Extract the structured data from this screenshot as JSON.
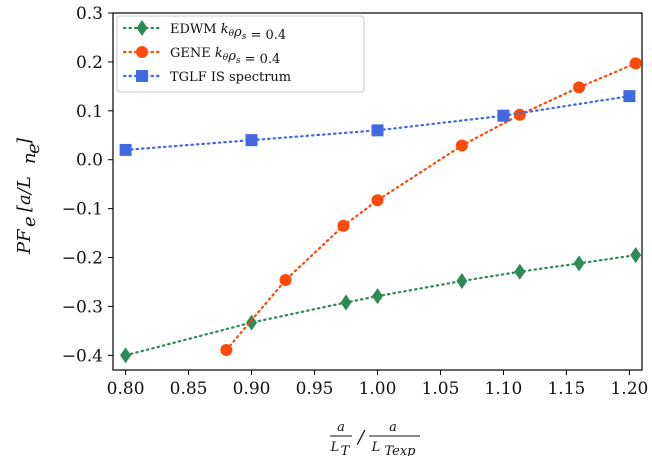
{
  "chart_data": {
    "type": "line",
    "x_axis": {
      "xlim": [
        0.79,
        1.21
      ],
      "ticks": [
        0.8,
        0.85,
        0.9,
        0.95,
        1.0,
        1.05,
        1.1,
        1.15,
        1.2
      ],
      "tick_labels": [
        "0.80",
        "0.85",
        "0.90",
        "0.95",
        "1.00",
        "1.05",
        "1.10",
        "1.15",
        "1.20"
      ]
    },
    "y_axis": {
      "ylim": [
        -0.43,
        0.3
      ],
      "ticks": [
        -0.4,
        -0.3,
        -0.2,
        -0.1,
        0.0,
        0.1,
        0.2,
        0.3
      ],
      "tick_labels": [
        "−0.4",
        "−0.3",
        "−0.2",
        "−0.1",
        "0.0",
        "0.1",
        "0.2",
        "0.3"
      ]
    },
    "xlabel": {
      "frac1_num": "a",
      "frac1_den": "L",
      "frac1_den_sub": "T",
      "slash": "/",
      "frac2_num": "a",
      "frac2_den": "L",
      "frac2_den_sub": "Texp"
    },
    "ylabel": {
      "text": "PF",
      "sub": "e",
      "units_prefix": "[a/L",
      "units_sub": "n",
      "units_subsub": "e",
      "units_suffix": "]"
    },
    "legend": {
      "placement": "upper-left",
      "entries": [
        "EDWM $k_\\theta\\rho_s$ = 0.4",
        "GENE $k_\\theta\\rho_s$ = 0.4",
        "TGLF IS spectrum"
      ],
      "rendered": [
        {
          "prefix": "EDWM ",
          "sym": "k",
          "sub1": "θ",
          "sym2": "ρ",
          "sub2": "s",
          "suffix": " = 0.4"
        },
        {
          "prefix": "GENE ",
          "sym": "k",
          "sub1": "θ",
          "sym2": "ρ",
          "sub2": "s",
          "suffix": " = 0.4"
        },
        {
          "prefix": "TGLF IS spectrum",
          "sym": "",
          "sub1": "",
          "sym2": "",
          "sub2": "",
          "suffix": ""
        }
      ]
    },
    "grid": false,
    "series": [
      {
        "name": "EDWM $k_\\theta\\rho_s$ = 0.4",
        "color": "#2e8b57",
        "marker": "diamond",
        "linestyle": "dotted",
        "x": [
          0.8,
          0.9,
          0.975,
          1.0,
          1.067,
          1.113,
          1.16,
          1.205
        ],
        "y": [
          -0.4,
          -0.333,
          -0.292,
          -0.279,
          -0.248,
          -0.229,
          -0.212,
          -0.195
        ]
      },
      {
        "name": "GENE $k_\\theta\\rho_s$ = 0.4",
        "color": "#fc4a0a",
        "marker": "circle",
        "linestyle": "dotted",
        "x": [
          0.88,
          0.927,
          0.973,
          1.0,
          1.067,
          1.113,
          1.16,
          1.205
        ],
        "y": [
          -0.389,
          -0.246,
          -0.135,
          -0.083,
          0.029,
          0.092,
          0.148,
          0.197
        ]
      },
      {
        "name": "TGLF IS spectrum",
        "color": "#4169e1",
        "marker": "square",
        "linestyle": "dotted",
        "x": [
          0.8,
          0.9,
          1.0,
          1.1,
          1.2
        ],
        "y": [
          0.02,
          0.04,
          0.06,
          0.09,
          0.13
        ]
      }
    ]
  }
}
